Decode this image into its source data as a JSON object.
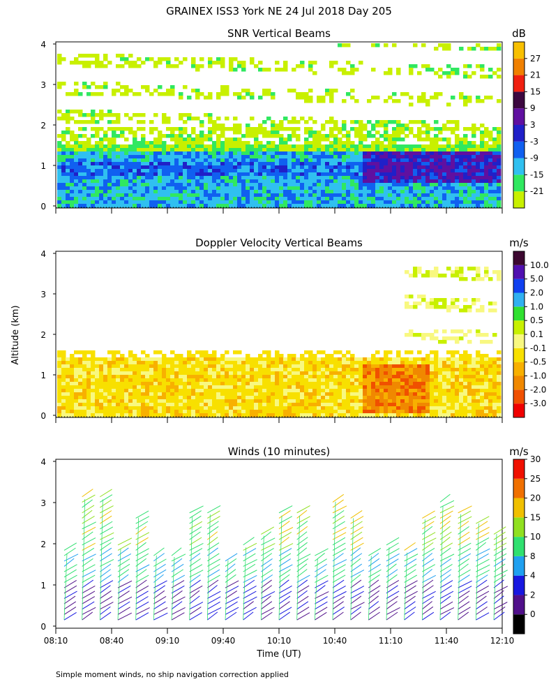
{
  "title": "GRAINEX ISS3 York NE  24 Jul 2018 Day 205",
  "ylabel": "Altitude (km)",
  "footnote": "Simple moment winds, no ship navigation correction applied",
  "chart_data": [
    {
      "type": "heatmap",
      "title": "SNR Vertical Beams",
      "xlabel": "",
      "ylabel": "Altitude (km)",
      "ylim": [
        0,
        4
      ],
      "yticks": [
        "0",
        "1",
        "2",
        "3",
        "4"
      ],
      "colorbar": {
        "unit": "dB",
        "labels": [
          "-21",
          "-15",
          "-9",
          "-3",
          "3",
          "9",
          "15",
          "21",
          "27"
        ],
        "colors": [
          "#c8f000",
          "#30e860",
          "#30c0f0",
          "#1060f0",
          "#2020c8",
          "#6010a0",
          "#3c0840",
          "#f02010",
          "#f08000",
          "#f8c000"
        ]
      }
    },
    {
      "type": "heatmap",
      "title": "Doppler Velocity Vertical Beams",
      "xlabel": "",
      "ylabel": "Altitude (km)",
      "ylim": [
        0,
        4
      ],
      "yticks": [
        "0",
        "1",
        "2",
        "3",
        "4"
      ],
      "colorbar": {
        "unit": "m/s",
        "labels": [
          "-3.0",
          "-2.0",
          "-1.0",
          "-0.5",
          "-0.1",
          "0.1",
          "0.5",
          "1.0",
          "2.0",
          "5.0",
          "10.0"
        ],
        "colors": [
          "#f00000",
          "#f05000",
          "#f08800",
          "#f8b000",
          "#f8e000",
          "#f8f880",
          "#c8f000",
          "#30e030",
          "#30b0f0",
          "#1040f0",
          "#5010b0",
          "#3c0830"
        ]
      }
    },
    {
      "type": "scatter",
      "title": "Winds (10 minutes)",
      "xlabel": "Time (UT)",
      "ylabel": "Altitude (km)",
      "ylim": [
        0,
        4
      ],
      "yticks": [
        "0",
        "1",
        "2",
        "3",
        "4"
      ],
      "xlim": [
        "08:10",
        "12:10"
      ],
      "xticks": [
        "08:10",
        "08:40",
        "09:10",
        "09:40",
        "10:10",
        "10:40",
        "11:10",
        "11:40",
        "12:10"
      ],
      "colorbar": {
        "unit": "m/s",
        "labels": [
          "0",
          "2",
          "4",
          "8",
          "10",
          "15",
          "20",
          "25",
          "30"
        ],
        "colors": [
          "#000000",
          "#50108a",
          "#1818e0",
          "#20a0f0",
          "#30e070",
          "#90e020",
          "#f0c000",
          "#f07000",
          "#f01000"
        ]
      }
    }
  ]
}
